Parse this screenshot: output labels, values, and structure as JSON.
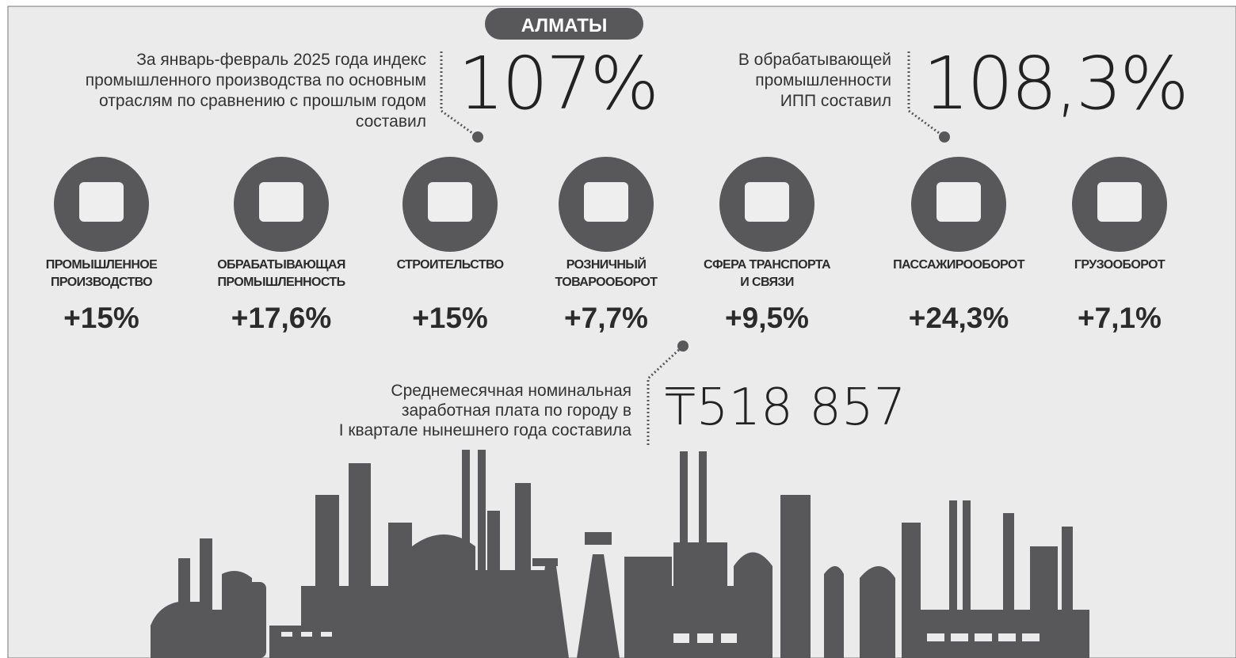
{
  "header": {
    "title": "АЛМАТЫ"
  },
  "highlights": [
    {
      "text": [
        "За январь-февраль 2025 года индекс",
        "промышленного производства по основным",
        "отраслям по сравнению с  прошлым годом",
        "составил"
      ],
      "value": "107%"
    },
    {
      "text": [
        "В обрабатывающей",
        "промышленности",
        "ИПП составил"
      ],
      "value": "108,3%"
    }
  ],
  "indicators": [
    {
      "label": [
        "ПРОМЫШЛЕННОЕ",
        "ПРОИЗВОДСТВО"
      ],
      "value": "+15%"
    },
    {
      "label": [
        "ОБРАБАТЫВАЮЩАЯ",
        "ПРОМЫШЛЕННОСТЬ"
      ],
      "value": "+17,6%"
    },
    {
      "label": [
        "СТРОИТЕЛЬСТВО"
      ],
      "value": "+15%"
    },
    {
      "label": [
        "РОЗНИЧНЫЙ",
        "ТОВАРООБОРОТ"
      ],
      "value": "+7,7%"
    },
    {
      "label": [
        "СФЕРА ТРАНСПОРТА",
        "И СВЯЗИ"
      ],
      "value": "+9,5%"
    },
    {
      "label": [
        "ПАССАЖИРООБОРОТ"
      ],
      "value": "+24,3%"
    },
    {
      "label": [
        "ГРУЗООБОРОТ"
      ],
      "value": "+7,1%"
    }
  ],
  "salary": {
    "text": [
      "Среднемесячная номинальная",
      "заработная плата по городу в",
      "I квартале нынешнего года составила"
    ],
    "value": "₸518 857"
  }
}
